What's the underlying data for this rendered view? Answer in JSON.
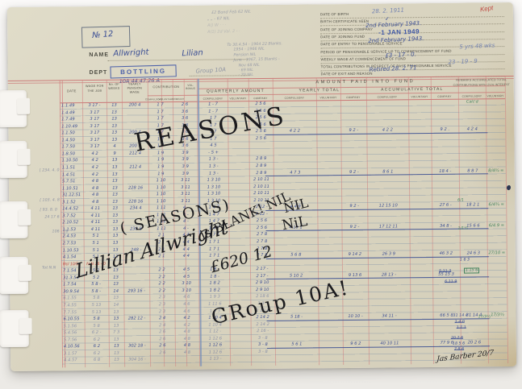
{
  "colors": {
    "paper": "#d9d4c0",
    "rule_red": "#d17d7e",
    "rule_blue": "#7d91a8",
    "ink": "#3d5095",
    "pencil": "#8f94a3",
    "marker": "#1b1b1e",
    "red_ink": "#bf4a42",
    "green": "#44835e"
  },
  "corner": {
    "number": "№ 12",
    "kept_note": "Kept"
  },
  "name_block": {
    "name_label": "NAME",
    "name_last": "Allwright",
    "name_first": "Lilian",
    "dept_label": "DEPT",
    "dept_stamp": "BOTTLING",
    "dept_note": "Group 10A",
    "code_note": "10A  44.47.26 A"
  },
  "pencil_top": [
    "£2 Bond Feb 62    NIL",
    "„   „   - 67    NIL",
    "A()  W · ·    ·",
    "A(1) 2d Val.   2 - ·"
  ],
  "pencil_side": [
    "To 30.4.54 - 1964    22 Blanks.",
    "1954 - 1966   NIL",
    "Pension  NIL",
    "June - 1967,  15 Blanks -",
    "Nov 68    NIL",
    "·  69    NIL",
    "·  70    NIL"
  ],
  "info": {
    "labels": [
      "DATE OF BIRTH",
      "BIRTH CERTIFICATE SEEN",
      "DATE OF JOINING COMPANY",
      "DATE OF JOINING FUND",
      "DATE OF ENTRY TO PENSIONABLE SERVICE",
      "PERIOD OF PENSIONABLE SERVICE UP TO COMMENCEMENT OF FUND",
      "WEEKLY WAGE AT COMMENCEMENT OF FUND",
      "TOTAL CONTRIBUTIONS IN RESPECT OF PAST PENSIONABLE SERVICE",
      "DATE OF EXIT AND REASON"
    ],
    "values": [
      "28. 2. 1911",
      "✓",
      "2nd February 1943.",
      "",
      "2nd February 1943.",
      "5 yrs 48 wks",
      "£3 - 17 - 0.",
      "23 - 19 - 9",
      "Retired  28. 2. 71"
    ],
    "stamp": "-1 JAN 1949"
  },
  "table": {
    "left_headers": [
      "DATE",
      "WAGE FOR THE JOB",
      "No. OF WEEKS",
      "YEARLY PENSION WAGE",
      "CONTRIBUTION"
    ],
    "bonus_lines": [
      "VOL.",
      "BONUS"
    ],
    "span_header": "AMOUNT   PAID   INTO   FUND",
    "groups": [
      "QUARTERLY   AMOUNT",
      "YEARLY   TOTAL",
      "ACCUMULATIVE   TOTAL"
    ],
    "remarks_line1": "REMARKS ACCUMULATED TOTAL",
    "remarks_line2": "CONTRIBUTIONS WITH 2½% INTEREST",
    "sub": [
      "COMPULSORY",
      "VOLUNTARY",
      "COMPANY"
    ],
    "remarks_sub": [
      "COMPULSORY",
      "VOLUNTARY"
    ],
    "rows": [
      {
        "c": [
          "1.1.49",
          "3 17 -",
          "13",
          "200 4",
          "1 7",
          "2 6",
          "1 - 7",
          "2 5 6"
        ]
      },
      {
        "c": [
          "1.4.49",
          "3 17",
          "13",
          "",
          "1 7",
          "3 6",
          "1 - 7",
          "2 5 6"
        ]
      },
      {
        "c": [
          "1.7.49",
          "3 17",
          "13",
          "",
          "1 7",
          "3 6",
          "1 7",
          "2 5 6"
        ]
      },
      {
        "c": [
          "1.10.49",
          "3 17",
          "13",
          "",
          "1 7",
          "3 6",
          "1 7",
          "2 5 6"
        ]
      },
      {
        "c": [
          "1.1.50",
          "3 17",
          "13",
          "200 4",
          "1 7",
          "3 6",
          "1 7",
          "2 5 6",
          "4 2 2",
          "9 2 -",
          "4 2 2",
          "9 2 .",
          "4 2 4",
          ""
        ],
        "rule": true
      },
      {
        "c": [
          "1.4.50",
          "3 17",
          "13",
          "",
          "1 7",
          "3 6",
          "1 7",
          "2 5 6"
        ]
      },
      {
        "c": [
          "1.7.50",
          "3 17",
          "4",
          "200 4",
          "1 7",
          "3 6",
          "4 5",
          ""
        ]
      },
      {
        "c": [
          "1.8.50",
          "4 2",
          "9",
          "212 4",
          "1 9",
          "3 9",
          "- 5 +",
          ""
        ]
      },
      {
        "c": [
          "1.10.50",
          "4 2",
          "13",
          "",
          "1 9",
          "3 9",
          "1 3 -",
          "2 8 9"
        ]
      },
      {
        "c": [
          "1.1.51",
          "4 2",
          "13",
          "212 4",
          "1 9",
          "3 9",
          "1 3 -",
          "2 8 9"
        ]
      },
      {
        "c": [
          "1.4.51",
          "4 2",
          "13",
          "",
          "1 9",
          "3 9",
          "1 3 -",
          "2 8 9",
          "4 7 3",
          "9 2 -",
          "8 6 1",
          "18 4 -",
          "8 8 7",
          "8/4¾ ="
        ],
        "rule": true
      },
      {
        "c": [
          "5.7.51",
          "4 8",
          "13",
          "",
          "1 10",
          "3 11",
          "1 3 10",
          "2 10 11"
        ]
      },
      {
        "c": [
          "1.10.51",
          "4 8",
          "13",
          "228 16",
          "1 10",
          "3 11",
          "1 3 10",
          "2 10 11"
        ]
      },
      {
        "c": [
          "31.12.51",
          "4 8",
          "13",
          "",
          "1 10",
          "3 11",
          "1 3 10",
          "2 10 11"
        ]
      },
      {
        "c": [
          "3.1.52",
          "4 8",
          "13",
          "228 16",
          "1 10",
          "3 11",
          "1 3 10",
          "2 10 11"
        ]
      },
      {
        "c": [
          "14.4.52",
          "4 11",
          "13",
          "234 4",
          "1 11",
          "4 -",
          "1 4 7",
          "2 12 -",
          "4 4 9",
          "9 2 -",
          "12 15 10",
          "27 6 -",
          "18 2 1",
          "6/4¾ ="
        ],
        "rule": true
      },
      {
        "c": [
          "3.7.52",
          "4 11",
          "13",
          "",
          "1 11",
          "4 -",
          "1 4 7",
          "2 12 -"
        ]
      },
      {
        "c": [
          "2.10.52",
          "4 11",
          "13",
          "",
          "1 11",
          "4 -",
          "1 4 7",
          "2 5 6"
        ]
      },
      {
        "c": [
          "1.1.53",
          "4 11",
          "13",
          "238 8",
          "1 11",
          "4 -",
          "1 4 7",
          "2 5 6",
          "4 19 1",
          "9 2 -",
          "17 12 11",
          "34 8 -",
          "15 6 6",
          "6/4.9 ="
        ],
        "rule": true
      },
      {
        "c": [
          "2.4.53",
          "5 1",
          "13",
          "",
          "2 1",
          "4 4",
          "1 7 1",
          "2 7 8"
        ]
      },
      {
        "c": [
          "2.7.53",
          "5 1",
          "13",
          "",
          "2 1",
          "4 4",
          "1 7 1",
          "2 7 8"
        ]
      },
      {
        "c": [
          "1.10.53",
          "5 1",
          "13",
          "248 -",
          "2 1",
          "4 4",
          "1 7 1",
          "2 7 8"
        ]
      },
      {
        "c": [
          "4.1.54",
          "5 1",
          "13",
          "",
          "2 1",
          "4 4",
          "1 7 1",
          "2 7 8",
          "5 6 8",
          "9 14 2",
          "26 3 9",
          "46 3 2",
          "24 6 3",
          "27/10 ="
        ],
        "rule": true
      },
      {
        "c": [
          "Rcl 10/54",
          "N.N 16 - 0"
        ],
        "red": true
      },
      {
        "c": [
          "7.1.54",
          "5 2",
          "13",
          "",
          "2 2",
          "4 5",
          "1 8 -",
          "2 17 -"
        ]
      },
      {
        "c": [
          "31.3.54",
          "5 2",
          "13",
          "",
          "2 2",
          "4 5",
          "1 8 -",
          "2 17 -",
          "5 10 2",
          "9 13 6",
          "28 13 -",
          "55 15 3",
          "",
          ""
        ],
        "rule": true
      },
      {
        "c": [
          "1.7.54",
          "5 8 -",
          "13",
          "",
          "2 2",
          "3 10",
          "1 8 2",
          "2 9 10"
        ]
      },
      {
        "c": [
          "30.9.54",
          "5 8 -",
          "14",
          "293 16 -",
          "2 2",
          "3 10",
          "1 8 2",
          "2 9 10"
        ]
      },
      {
        "c": [
          "6.1.55",
          "5 8",
          "13",
          "",
          "2 3",
          "4 6",
          "1 9 3",
          "2 18 6"
        ],
        "faint": true
      },
      {
        "c": [
          "7.4.55",
          "5 13",
          "14",
          "",
          "2 3",
          "4 6",
          "1 11 6",
          "3 3 -"
        ],
        "faint": true
      },
      {
        "c": [
          "7.7.55",
          "5 13",
          "13",
          "",
          "2 3",
          "4 6",
          "1 9 3",
          "2 18 6"
        ],
        "faint": true
      },
      {
        "c": [
          "6.10.55",
          "5 8",
          "13",
          "282 12 -",
          "2 4",
          "4 2",
          "1 10 4",
          "2 14 2",
          "5 18 -",
          "10 10 -",
          "34 11 -",
          "66 5 8",
          "31 14 4",
          "17/3½"
        ],
        "rule": true
      },
      {
        "c": [
          "5.1.56",
          "5 8",
          "13",
          "",
          "2 4",
          "4 2",
          "1 10 4",
          "2 14 2"
        ],
        "faint": true
      },
      {
        "c": [
          "5.4.56",
          "6 2 -",
          "7 3",
          "",
          "2 6",
          "4 8",
          "1 12 -",
          "2 16 -"
        ],
        "faint": true
      },
      {
        "c": [
          "5.7.56",
          "6 2",
          "13",
          "",
          "2 6",
          "4 8",
          "1 12 6",
          "3 - 8"
        ],
        "faint": true
      },
      {
        "c": [
          "4.10.56",
          "6 2",
          "13",
          "302 18 -",
          "2 6",
          "4 8",
          "1 12 6",
          "3 - 8",
          "5 6 1",
          "9 6 2",
          "40 10 11",
          "77 9 6",
          "20 2 6",
          ""
        ],
        "rule": true
      },
      {
        "c": [
          "3.1.57",
          "6 2",
          "13",
          "",
          "2 6",
          "4 8",
          "1 12 6",
          "3 - 8"
        ],
        "faint": true
      },
      {
        "c": [
          "4.4.57",
          "6 8",
          "13",
          "304 16 -",
          "",
          "",
          "1 13 -",
          ""
        ],
        "faint": true
      }
    ]
  },
  "marker": {
    "reasons": "REASONS",
    "seasons": "( SEASONS)",
    "name": "Lillian Allwright",
    "blank": "is BLANK! NIL",
    "nil1": "NIL",
    "nil2": "NiL",
    "amount": "£620 12",
    "group": "GRoup 10A!"
  },
  "annotations": [
    {
      "t": "Calc'd",
      "k": "green"
    },
    {
      "t": "6/1",
      "k": "green"
    },
    {
      "t": "1/1½",
      "k": "green"
    },
    {
      "t": "1 6 3",
      "k": "inks"
    },
    {
      "t": "5 11 3",
      "k": "cross"
    },
    {
      "t": "1 15 6",
      "k": "greenbox"
    },
    {
      "t": "6 11 9",
      "k": "cross"
    },
    {
      "t": "31 14 4",
      "k": "inks"
    },
    {
      "t": "1 4 0",
      "k": "cross"
    },
    {
      "t": "1 1 1",
      "k": "cross"
    },
    {
      "t": "17/3½",
      "k": "green"
    },
    {
      "t": "20 2 6",
      "k": "cross"
    },
    {
      "t": "18 5 6",
      "k": "inks"
    },
    {
      "t": "7 8 6",
      "k": "cross"
    },
    {
      "t": "106 - 16",
      "k": "pencil"
    },
    {
      "t": "[ 234. 4. 0",
      "k": "pencil"
    },
    {
      "t": "[ 103. 4. 8",
      "k": "pencil"
    },
    {
      "t": "[ 93. 8. 0",
      "k": "pencil"
    },
    {
      "t": "24 17 6",
      "k": "pencil"
    },
    {
      "t": "Tot  N.N",
      "k": "pencil"
    }
  ],
  "signature": "Jas Barber 20/7"
}
